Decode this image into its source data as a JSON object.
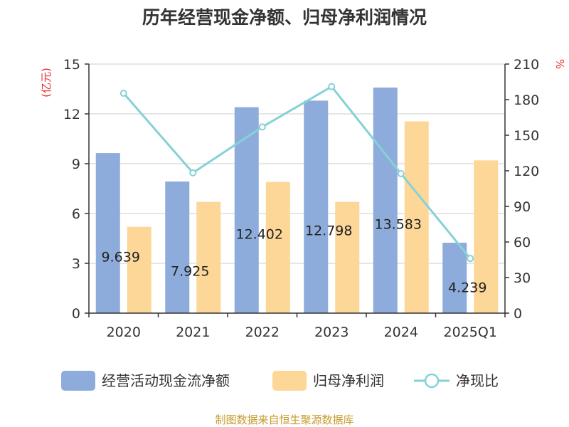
{
  "chart_data": {
    "type": "bar",
    "title": "历年经营现金净额、归母净利润情况",
    "categories": [
      "2020",
      "2021",
      "2022",
      "2023",
      "2024",
      "2025Q1"
    ],
    "series": [
      {
        "name": "经营活动现金流净额",
        "type": "bar",
        "axis": "left",
        "values": [
          9.639,
          7.925,
          12.402,
          12.798,
          13.583,
          4.239
        ],
        "labels": [
          "9.639",
          "7.925",
          "12.402",
          "12.798",
          "13.583",
          "4.239"
        ]
      },
      {
        "name": "归母净利润",
        "type": "bar",
        "axis": "left",
        "values": [
          5.2,
          6.7,
          7.9,
          6.7,
          11.55,
          9.2
        ]
      },
      {
        "name": "净现比",
        "type": "line",
        "axis": "right",
        "values": [
          185.4,
          118.3,
          157.0,
          191.0,
          117.6,
          46.1
        ]
      }
    ],
    "y_left": {
      "unit": "(亿元)",
      "ylim": [
        0,
        15
      ],
      "ticks": [
        "0",
        "3",
        "6",
        "9",
        "12",
        "15"
      ]
    },
    "y_right": {
      "unit": "%",
      "ylim": [
        0,
        210
      ],
      "ticks": [
        "0",
        "30",
        "60",
        "90",
        "120",
        "150",
        "180",
        "210"
      ]
    },
    "grid": true,
    "legend": "bottom",
    "colors": {
      "bar1": "#8eacdb",
      "bar2": "#fdd797",
      "line": "#87d1d6"
    },
    "source_note": "制图数据来自恒生聚源数据库"
  }
}
